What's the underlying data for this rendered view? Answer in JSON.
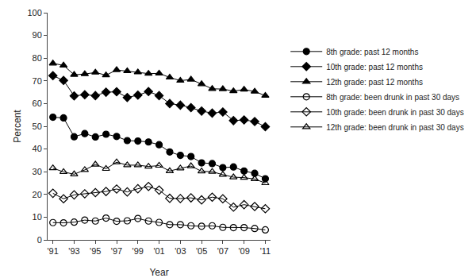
{
  "chart_data": {
    "type": "line",
    "x_label": "Year",
    "y_label": "Percent",
    "x": [
      1991,
      1992,
      1993,
      1994,
      1995,
      1996,
      1997,
      1998,
      1999,
      2000,
      2001,
      2002,
      2003,
      2004,
      2005,
      2006,
      2007,
      2008,
      2009,
      2010,
      2011
    ],
    "xlim": [
      1990.5,
      2011.5
    ],
    "xticks": [
      {
        "value": 1991,
        "label": "'91"
      },
      {
        "value": 1993,
        "label": "'93"
      },
      {
        "value": 1995,
        "label": "'95"
      },
      {
        "value": 1997,
        "label": "'97"
      },
      {
        "value": 1999,
        "label": "'99"
      },
      {
        "value": 2001,
        "label": "'01"
      },
      {
        "value": 2003,
        "label": "'03"
      },
      {
        "value": 2005,
        "label": "'05"
      },
      {
        "value": 2007,
        "label": "'07"
      },
      {
        "value": 2009,
        "label": "'09"
      },
      {
        "value": 2011,
        "label": "'11"
      }
    ],
    "ylim": [
      0,
      100
    ],
    "yticks": [
      0,
      10,
      20,
      30,
      40,
      50,
      60,
      70,
      80,
      90,
      100
    ],
    "grid": false,
    "legend": "right",
    "series": [
      {
        "name": "8th grade: past 12 months",
        "color": "#000000",
        "marker": "circle",
        "values": [
          54.0,
          53.7,
          45.4,
          46.8,
          45.3,
          46.5,
          45.5,
          43.7,
          43.5,
          43.1,
          41.9,
          38.7,
          37.2,
          36.7,
          33.9,
          33.6,
          31.8,
          32.1,
          30.3,
          29.3,
          26.9
        ]
      },
      {
        "name": "10th grade: past 12 months",
        "color": "#000000",
        "marker": "diamond",
        "values": [
          72.3,
          70.2,
          63.4,
          63.9,
          63.5,
          65.0,
          65.2,
          62.7,
          63.7,
          65.3,
          63.5,
          60.0,
          59.3,
          58.2,
          56.7,
          55.8,
          56.3,
          52.5,
          52.8,
          52.1,
          49.8
        ]
      },
      {
        "name": "12th grade: past 12 months",
        "color": "#000000",
        "marker": "triangle-up",
        "values": [
          77.7,
          76.8,
          72.7,
          73.0,
          73.7,
          72.5,
          74.8,
          74.3,
          73.8,
          73.2,
          73.3,
          71.5,
          70.1,
          70.6,
          68.6,
          66.5,
          66.4,
          65.5,
          66.2,
          65.3,
          63.5
        ]
      },
      {
        "name": "8th grade: been drunk in past 30 days",
        "color": "#000000",
        "marker": "circle-open",
        "values": [
          7.6,
          7.5,
          7.8,
          8.7,
          8.3,
          9.6,
          8.2,
          8.4,
          9.4,
          8.3,
          7.7,
          6.7,
          6.7,
          6.2,
          6.0,
          6.2,
          5.5,
          5.4,
          5.4,
          5.0,
          4.4
        ]
      },
      {
        "name": "10th grade: been drunk in past 30 days",
        "color": "#000000",
        "marker": "diamond-open",
        "values": [
          20.5,
          18.1,
          19.8,
          20.3,
          20.8,
          21.3,
          22.4,
          21.1,
          22.5,
          23.5,
          21.9,
          18.3,
          18.2,
          18.5,
          17.6,
          18.8,
          18.1,
          14.4,
          15.5,
          14.7,
          13.7
        ]
      },
      {
        "name": "12th grade: been drunk in past 30 days",
        "color": "#000000",
        "marker": "triangle-up-open",
        "values": [
          31.6,
          29.9,
          28.9,
          30.8,
          33.2,
          31.3,
          34.2,
          32.9,
          32.9,
          32.3,
          32.7,
          30.3,
          31.5,
          32.5,
          30.2,
          30.0,
          28.7,
          27.6,
          27.4,
          26.8,
          25.0
        ]
      }
    ]
  }
}
